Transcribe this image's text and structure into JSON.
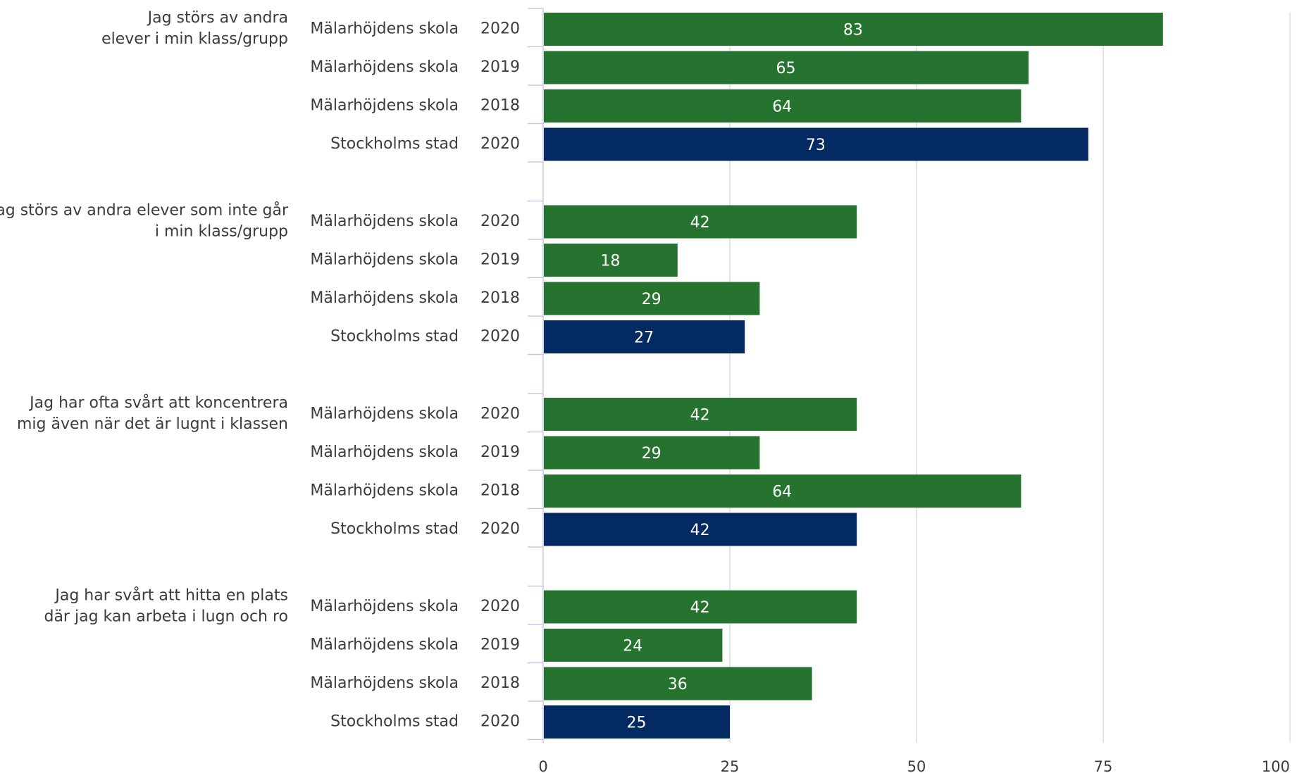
{
  "chart_data": {
    "type": "bar",
    "orientation": "horizontal",
    "xlim": [
      0,
      100
    ],
    "ticks": [
      0,
      25,
      50,
      75,
      100
    ],
    "grid": true,
    "colors": {
      "school": "#267330",
      "city": "#032a62",
      "gridline": "#dcdce6",
      "axis": "#c8c8e6"
    },
    "groups": [
      {
        "label_lines": [
          "Jag störs av andra",
          "elever i min klass/grupp"
        ],
        "rows": [
          {
            "label": "Mälarhöjdens skola",
            "year": "2020",
            "value": 83,
            "kind": "school"
          },
          {
            "label": "Mälarhöjdens skola",
            "year": "2019",
            "value": 65,
            "kind": "school"
          },
          {
            "label": "Mälarhöjdens skola",
            "year": "2018",
            "value": 64,
            "kind": "school"
          },
          {
            "label": "Stockholms stad",
            "year": "2020",
            "value": 73,
            "kind": "city"
          }
        ]
      },
      {
        "label_lines": [
          "Jag störs av andra elever som inte går",
          "i min klass/grupp"
        ],
        "rows": [
          {
            "label": "Mälarhöjdens skola",
            "year": "2020",
            "value": 42,
            "kind": "school"
          },
          {
            "label": "Mälarhöjdens skola",
            "year": "2019",
            "value": 18,
            "kind": "school"
          },
          {
            "label": "Mälarhöjdens skola",
            "year": "2018",
            "value": 29,
            "kind": "school"
          },
          {
            "label": "Stockholms stad",
            "year": "2020",
            "value": 27,
            "kind": "city"
          }
        ]
      },
      {
        "label_lines": [
          "Jag har ofta svårt att koncentrera",
          "mig även när det är lugnt i klassen"
        ],
        "rows": [
          {
            "label": "Mälarhöjdens skola",
            "year": "2020",
            "value": 42,
            "kind": "school"
          },
          {
            "label": "Mälarhöjdens skola",
            "year": "2019",
            "value": 29,
            "kind": "school"
          },
          {
            "label": "Mälarhöjdens skola",
            "year": "2018",
            "value": 64,
            "kind": "school"
          },
          {
            "label": "Stockholms stad",
            "year": "2020",
            "value": 42,
            "kind": "city"
          }
        ]
      },
      {
        "label_lines": [
          "Jag har svårt att hitta en plats",
          "där jag kan arbeta i lugn och ro"
        ],
        "rows": [
          {
            "label": "Mälarhöjdens skola",
            "year": "2020",
            "value": 42,
            "kind": "school"
          },
          {
            "label": "Mälarhöjdens skola",
            "year": "2019",
            "value": 24,
            "kind": "school"
          },
          {
            "label": "Mälarhöjdens skola",
            "year": "2018",
            "value": 36,
            "kind": "school"
          },
          {
            "label": "Stockholms stad",
            "year": "2020",
            "value": 25,
            "kind": "city"
          }
        ]
      }
    ]
  }
}
